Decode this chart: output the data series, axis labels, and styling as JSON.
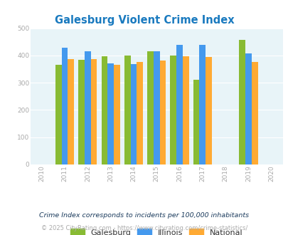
{
  "title": "Galesburg Violent Crime Index",
  "title_color": "#1a7abf",
  "years": [
    2011,
    2012,
    2013,
    2014,
    2015,
    2016,
    2017,
    2019
  ],
  "galesburg": [
    365,
    383,
    398,
    400,
    415,
    400,
    312,
    458
  ],
  "illinois": [
    428,
    415,
    370,
    368,
    415,
    438,
    438,
    408
  ],
  "national": [
    387,
    387,
    366,
    375,
    382,
    397,
    394,
    377
  ],
  "galesburg_color": "#88bb33",
  "illinois_color": "#4499ee",
  "national_color": "#ffaa33",
  "bg_color": "#e8f4f8",
  "xlim": [
    2009.5,
    2020.5
  ],
  "ylim": [
    0,
    500
  ],
  "yticks": [
    0,
    100,
    200,
    300,
    400,
    500
  ],
  "xticks": [
    2010,
    2011,
    2012,
    2013,
    2014,
    2015,
    2016,
    2017,
    2018,
    2019,
    2020
  ],
  "bar_width": 0.27,
  "footnote1": "Crime Index corresponds to incidents per 100,000 inhabitants",
  "footnote2": "© 2025 CityRating.com - https://www.cityrating.com/crime-statistics/",
  "legend_labels": [
    "Galesburg",
    "Illinois",
    "National"
  ],
  "footnote1_color": "#1a3a5c",
  "footnote2_color": "#aaaaaa",
  "tick_color": "#aaaaaa"
}
